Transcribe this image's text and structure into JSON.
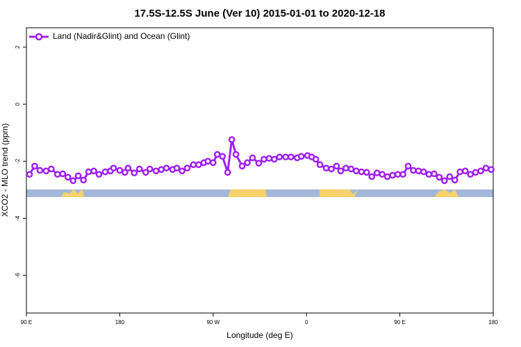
{
  "chart_data": {
    "type": "line",
    "title": "17.5S-12.5S June (Ver 10)   2015-01-01 to 2020-12-18",
    "x_label": "Longitude (deg E)",
    "y_label": "XCO2 - MLO trend (ppm)",
    "legend_position": "top-left",
    "xlim": [
      90,
      540
    ],
    "xticks": [
      {
        "value": 90,
        "label": "90 E"
      },
      {
        "value": 180,
        "label": "180"
      },
      {
        "value": 270,
        "label": "90 W"
      },
      {
        "value": 360,
        "label": "0"
      },
      {
        "value": 450,
        "label": "90 E"
      },
      {
        "value": 540,
        "label": "180"
      }
    ],
    "ylim": [
      -7.32,
      2.68
    ],
    "yticks": [
      2,
      0,
      -2,
      -4,
      -6
    ],
    "series": [
      {
        "name": "Land (Nadir&Glint) and Ocean (Glint)",
        "color": "#a020f0",
        "x": [
          93,
          98,
          103,
          109,
          114,
          120,
          125,
          130,
          135,
          140,
          145,
          150,
          155,
          160,
          166,
          171,
          174,
          180,
          185,
          188,
          194,
          199,
          205,
          209,
          215,
          220,
          225,
          231,
          235,
          240,
          245,
          251,
          256,
          261,
          265,
          270,
          274,
          279,
          284,
          288,
          292,
          298,
          303,
          308,
          314,
          319,
          324,
          329,
          334,
          340,
          345,
          351,
          355,
          361,
          365,
          369,
          373,
          379,
          384,
          389,
          393,
          398,
          403,
          408,
          413,
          418,
          423,
          428,
          433,
          438,
          443,
          448,
          453,
          458,
          463,
          468,
          473,
          478,
          483,
          488,
          493,
          498,
          503,
          508,
          513,
          518,
          523,
          528,
          533,
          538
        ],
        "values": [
          -2.46,
          -2.17,
          -2.32,
          -2.34,
          -2.27,
          -2.46,
          -2.44,
          -2.56,
          -2.68,
          -2.51,
          -2.66,
          -2.37,
          -2.34,
          -2.46,
          -2.37,
          -2.34,
          -2.24,
          -2.32,
          -2.39,
          -2.24,
          -2.41,
          -2.27,
          -2.39,
          -2.27,
          -2.34,
          -2.29,
          -2.24,
          -2.29,
          -2.24,
          -2.34,
          -2.24,
          -2.12,
          -2.12,
          -2.05,
          -2.0,
          -2.05,
          -1.76,
          -1.83,
          -2.39,
          -1.24,
          -1.76,
          -2.17,
          -2.05,
          -1.88,
          -2.07,
          -1.93,
          -1.9,
          -1.93,
          -1.85,
          -1.85,
          -1.85,
          -1.88,
          -1.83,
          -1.8,
          -1.85,
          -1.93,
          -2.12,
          -2.24,
          -2.27,
          -2.17,
          -2.34,
          -2.24,
          -2.27,
          -2.34,
          -2.37,
          -2.39,
          -2.54,
          -2.41,
          -2.46,
          -2.54,
          -2.49,
          -2.46,
          -2.46,
          -2.17,
          -2.32,
          -2.34,
          -2.37,
          -2.46,
          -2.44,
          -2.56,
          -2.68,
          -2.54,
          -2.66,
          -2.37,
          -2.34,
          -2.46,
          -2.39,
          -2.34,
          -2.24,
          -2.29
        ]
      }
    ]
  }
}
